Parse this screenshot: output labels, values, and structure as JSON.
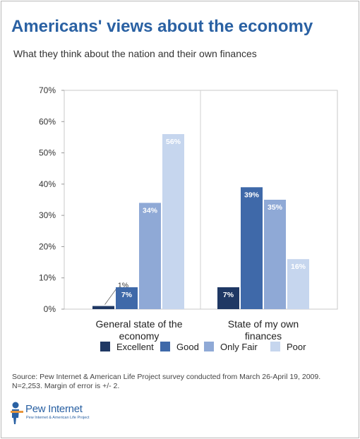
{
  "header": {
    "title": "Americans' views about the economy",
    "subtitle": "What they think about the nation and their own finances"
  },
  "chart_data": {
    "type": "bar",
    "categories": [
      "General state of the economy",
      "State of my own finances"
    ],
    "category_lines": [
      [
        "General state of the",
        "economy"
      ],
      [
        "State of my own",
        "finances"
      ]
    ],
    "series": [
      {
        "name": "Excellent",
        "color": "#1f3864",
        "values": [
          1,
          7
        ],
        "labels": [
          "1%",
          "7%"
        ]
      },
      {
        "name": "Good",
        "color": "#3f69a9",
        "values": [
          7,
          39
        ],
        "labels": [
          "7%",
          "39%"
        ]
      },
      {
        "name": "Only Fair",
        "color": "#8fa9d6",
        "values": [
          34,
          35
        ],
        "labels": [
          "34%",
          "35%"
        ]
      },
      {
        "name": "Poor",
        "color": "#c6d6ee",
        "values": [
          56,
          16
        ],
        "labels": [
          "56%",
          "16%"
        ]
      }
    ],
    "yticks": [
      "0%",
      "10%",
      "20%",
      "30%",
      "40%",
      "50%",
      "60%",
      "70%"
    ],
    "ylim": [
      0,
      70
    ],
    "grid": false,
    "legend_position": "bottom"
  },
  "footer": {
    "source": "Source: Pew Internet & American Life Project survey conducted from March 26-April 19, 2009. N=2,253. Margin of error is +/- 2.",
    "logo_text": "Pew Internet",
    "logo_tagline": "Pew Internet & American Life Project"
  }
}
